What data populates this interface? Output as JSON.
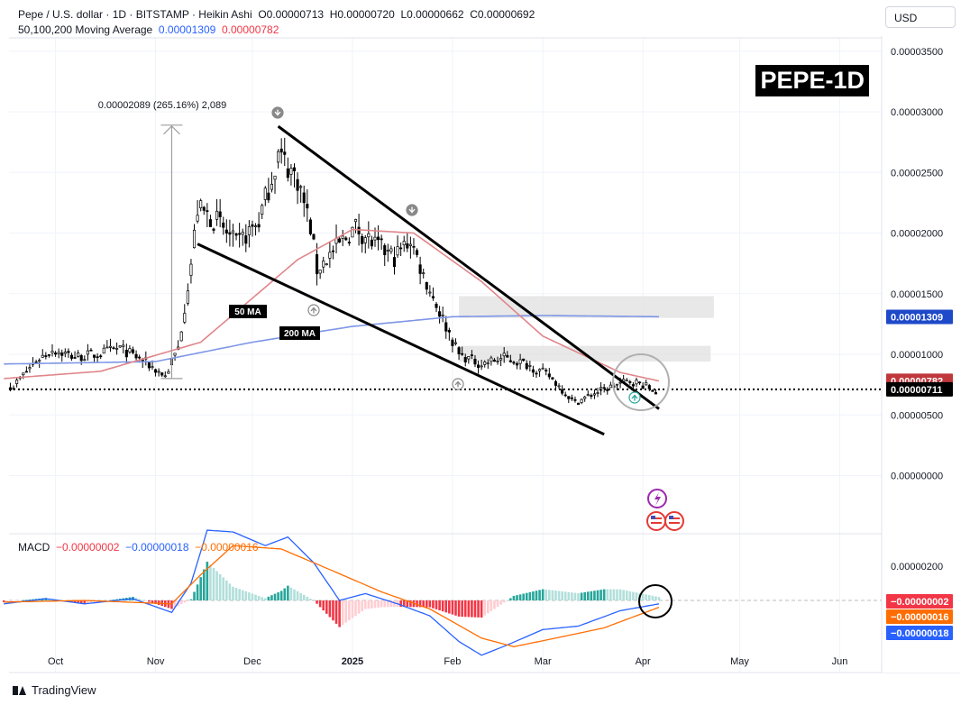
{
  "header": {
    "symbol_line": "Pepe / U.S. dollar · 1D · BITSTAMP · Heikin Ashi",
    "open": "O0.00000713",
    "high": "H0.00000720",
    "low": "L0.00000662",
    "close": "C0.00000692",
    "ma_label": "50,100,200 Moving Average",
    "ma_value_1": "0.00001309",
    "ma_value_2": "0.00000782"
  },
  "currency_button": "USD",
  "badge": "PEPE-1D",
  "branding": "TradingView",
  "macd_header": {
    "label": "MACD",
    "v1": "−0.00000002",
    "v2": "−0.00000018",
    "v3": "−0.00000016"
  },
  "annotations": {
    "measure": "0.00002089 (265.16%) 2,089",
    "ma50": "50 MA",
    "ma200": "200 MA"
  },
  "colors": {
    "ma_blue": "#7e96e6",
    "ma_red": "#e0868a",
    "macd_blue": "#2962ff",
    "macd_orange": "#ff6d00",
    "hist_up": "#26a69a",
    "hist_down": "#f23645",
    "price_tag_red": "#c0383c",
    "price_tag_black": "#000000",
    "ma_tag_blue": "#1e49c9"
  },
  "chart_data": [
    {
      "type": "candlestick",
      "title": "",
      "x_ticks": [
        "Oct",
        "Nov",
        "Dec",
        "2025",
        "Feb",
        "Mar",
        "Apr",
        "May",
        "Jun"
      ],
      "y_ticks": [
        "0.00003500",
        "0.00003000",
        "0.00002500",
        "0.00002000",
        "0.00001500",
        "0.00001000",
        "0.00000500",
        "0.00000000"
      ],
      "ylim": [
        0,
        3.5e-05
      ],
      "price_tags": [
        {
          "label": "0.00001309",
          "value": 1.309e-05
        },
        {
          "label": "0.00000782",
          "value": 7.82e-06
        },
        {
          "label": "0.00000711",
          "value": 7.11e-06
        }
      ],
      "close_anchors": [
        [
          "2024-09-18",
          7.4e-06
        ],
        [
          "2024-09-25",
          9.5e-06
        ],
        [
          "2024-09-30",
          1.04e-05
        ],
        [
          "2024-10-07",
          9.8e-06
        ],
        [
          "2024-10-14",
          1e-05
        ],
        [
          "2024-10-21",
          1.05e-05
        ],
        [
          "2024-10-28",
          9.5e-06
        ],
        [
          "2024-11-04",
          8.2e-06
        ],
        [
          "2024-11-08",
          1.05e-05
        ],
        [
          "2024-11-12",
          1.75e-05
        ],
        [
          "2024-11-14",
          2.2e-05
        ],
        [
          "2024-11-20",
          2.1e-05
        ],
        [
          "2024-11-26",
          1.9e-05
        ],
        [
          "2024-12-03",
          2.1e-05
        ],
        [
          "2024-12-09",
          2.65e-05
        ],
        [
          "2024-12-15",
          2.45e-05
        ],
        [
          "2024-12-19",
          2.05e-05
        ],
        [
          "2024-12-21",
          1.7e-05
        ],
        [
          "2024-12-26",
          1.85e-05
        ],
        [
          "2025-01-02",
          2.05e-05
        ],
        [
          "2025-01-08",
          1.9e-05
        ],
        [
          "2025-01-14",
          1.8e-05
        ],
        [
          "2025-01-19",
          1.95e-05
        ],
        [
          "2025-01-23",
          1.65e-05
        ],
        [
          "2025-01-28",
          1.35e-05
        ],
        [
          "2025-02-03",
          1e-05
        ],
        [
          "2025-02-10",
          9.2e-06
        ],
        [
          "2025-02-17",
          9.7e-06
        ],
        [
          "2025-02-24",
          9.2e-06
        ],
        [
          "2025-03-03",
          8.2e-06
        ],
        [
          "2025-03-11",
          6e-06
        ],
        [
          "2025-03-17",
          6.8e-06
        ],
        [
          "2025-03-24",
          7.5e-06
        ],
        [
          "2025-03-28",
          7.8e-06
        ],
        [
          "2025-04-01",
          7.5e-06
        ],
        [
          "2025-04-05",
          6.9e-06
        ]
      ],
      "ma_200": [
        [
          "2024-09-15",
          9.2e-06
        ],
        [
          "2024-11-01",
          9.4e-06
        ],
        [
          "2024-12-01",
          1.1e-05
        ],
        [
          "2025-01-01",
          1.23e-05
        ],
        [
          "2025-02-01",
          1.31e-05
        ],
        [
          "2025-03-01",
          1.32e-05
        ],
        [
          "2025-04-06",
          1.31e-05
        ]
      ],
      "ma_50": [
        [
          "2024-09-15",
          8e-06
        ],
        [
          "2024-10-15",
          8.6e-06
        ],
        [
          "2024-11-15",
          1.1e-05
        ],
        [
          "2024-12-15",
          1.78e-05
        ],
        [
          "2025-01-01",
          2.03e-05
        ],
        [
          "2025-01-20",
          2e-05
        ],
        [
          "2025-02-10",
          1.6e-05
        ],
        [
          "2025-03-01",
          1.15e-05
        ],
        [
          "2025-03-25",
          8.5e-06
        ],
        [
          "2025-04-06",
          7.8e-06
        ]
      ],
      "trendlines": [
        {
          "from": [
            "2024-12-09",
            2.88e-05
          ],
          "to": [
            "2025-04-06",
            5.5e-06
          ]
        },
        {
          "from": [
            "2024-11-14",
            1.91e-05
          ],
          "to": [
            "2025-03-20",
            3.4e-06
          ]
        }
      ],
      "zones": [
        {
          "from": "2025-02-03",
          "to": "2025-04-23",
          "low": 1.3e-05,
          "high": 1.48e-05
        },
        {
          "from": "2025-02-03",
          "to": "2025-04-22",
          "low": 9.4e-06,
          "high": 1.07e-05
        }
      ],
      "measure": {
        "date": "2024-11-06",
        "low": 8e-06,
        "high": 2.89e-05
      },
      "last_price_line": 7.11e-06
    },
    {
      "type": "macd",
      "title": "",
      "y_ticks": [
        "0.00000200"
      ],
      "ylim": [
        -4.2e-06,
        3.1e-06
      ],
      "price_tags": [
        {
          "label": "−0.00000002",
          "value": -2e-08
        },
        {
          "label": "−0.00000016",
          "value": -1.6e-07
        },
        {
          "label": "−0.00000018",
          "value": -1.8e-07
        }
      ],
      "macd_anchors": [
        [
          "2024-09-15",
          -2e-07
        ],
        [
          "2024-09-28",
          1e-07
        ],
        [
          "2024-10-10",
          -2e-07
        ],
        [
          "2024-10-25",
          1e-07
        ],
        [
          "2024-11-06",
          -7e-07
        ],
        [
          "2024-11-12",
          1e-06
        ],
        [
          "2024-11-17",
          4.1e-06
        ],
        [
          "2024-11-25",
          4e-06
        ],
        [
          "2024-12-05",
          3.2e-06
        ],
        [
          "2024-12-12",
          3.7e-06
        ],
        [
          "2024-12-20",
          2.2e-06
        ],
        [
          "2024-12-28",
          0.0
        ],
        [
          "2025-01-05",
          4e-07
        ],
        [
          "2025-01-15",
          -2e-07
        ],
        [
          "2025-01-25",
          -9e-07
        ],
        [
          "2025-02-03",
          -2.4e-06
        ],
        [
          "2025-02-10",
          -3.2e-06
        ],
        [
          "2025-02-18",
          -2.6e-06
        ],
        [
          "2025-03-01",
          -1.7e-06
        ],
        [
          "2025-03-12",
          -1.5e-06
        ],
        [
          "2025-03-25",
          -6e-07
        ],
        [
          "2025-04-06",
          -2e-07
        ]
      ],
      "signal_anchors": [
        [
          "2024-09-15",
          -1e-07
        ],
        [
          "2024-10-10",
          0.0
        ],
        [
          "2024-11-06",
          -2e-07
        ],
        [
          "2024-11-15",
          1.5e-06
        ],
        [
          "2024-11-25",
          3.2e-06
        ],
        [
          "2024-12-10",
          3e-06
        ],
        [
          "2024-12-25",
          1.8e-06
        ],
        [
          "2025-01-10",
          5e-07
        ],
        [
          "2025-01-25",
          -5e-07
        ],
        [
          "2025-02-10",
          -2.2e-06
        ],
        [
          "2025-02-20",
          -2.7e-06
        ],
        [
          "2025-03-05",
          -2.2e-06
        ],
        [
          "2025-03-20",
          -1.6e-06
        ],
        [
          "2025-04-06",
          -4e-07
        ]
      ]
    }
  ]
}
